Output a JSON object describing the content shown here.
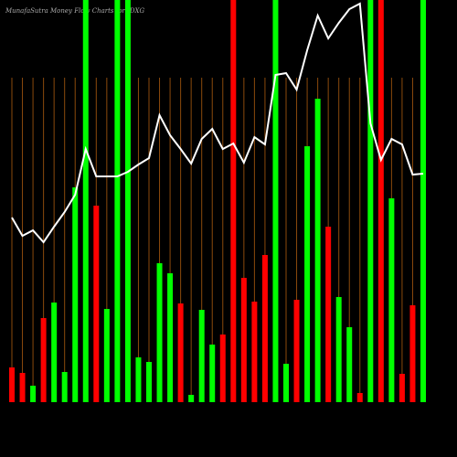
{
  "chart_data": {
    "type": "bar",
    "title": "MunafaSutra Money Flow Charts for IDXG",
    "categories": [
      null,
      null,
      null,
      null,
      null,
      null,
      null,
      null,
      null,
      null,
      null,
      null,
      null,
      null,
      null,
      null,
      null,
      null,
      null,
      null,
      null,
      null,
      null,
      null,
      null,
      null,
      null,
      null,
      null,
      null,
      null,
      null,
      null,
      null,
      null,
      null,
      null,
      null,
      null,
      null
    ],
    "values": [
      38,
      32,
      18,
      92,
      109,
      33,
      235,
      440,
      215,
      102,
      440,
      440,
      49,
      44,
      152,
      141,
      108,
      8,
      101,
      63,
      74,
      440,
      136,
      110,
      161,
      440,
      42,
      112,
      280,
      332,
      192,
      115,
      82,
      10,
      440,
      440,
      223,
      31,
      106,
      440
    ],
    "colors": [
      "#ff0000",
      "#ff0000",
      "#00ff00",
      "#ff0000",
      "#00ff00",
      "#00ff00",
      "#00ff00",
      "#00ff00",
      "#ff0000",
      "#00ff00",
      "#00ff00",
      "#00ff00",
      "#00ff00",
      "#00ff00",
      "#00ff00",
      "#00ff00",
      "#ff0000",
      "#00ff00",
      "#00ff00",
      "#00ff00",
      "#ff0000",
      "#ff0000",
      "#ff0000",
      "#ff0000",
      "#ff0000",
      "#00ff00",
      "#00ff00",
      "#ff0000",
      "#00ff00",
      "#00ff00",
      "#ff0000",
      "#00ff00",
      "#00ff00",
      "#ff0000",
      "#00ff00",
      "#ff0000",
      "#00ff00",
      "#ff0000",
      "#ff0000",
      "#00ff00"
    ],
    "line": {
      "color": "#ffffff",
      "values": [
        202,
        182,
        188,
        175,
        192,
        208,
        227,
        277,
        247,
        247,
        247,
        252,
        260,
        267,
        314,
        292,
        277,
        261,
        288,
        299,
        277,
        283,
        262,
        290,
        282,
        358,
        360,
        342,
        385,
        423,
        398,
        415,
        430,
        436,
        305,
        265,
        288,
        282,
        249,
        250
      ]
    },
    "grid_color": "#8b4a0c",
    "ylim": [
      0,
      440
    ]
  }
}
